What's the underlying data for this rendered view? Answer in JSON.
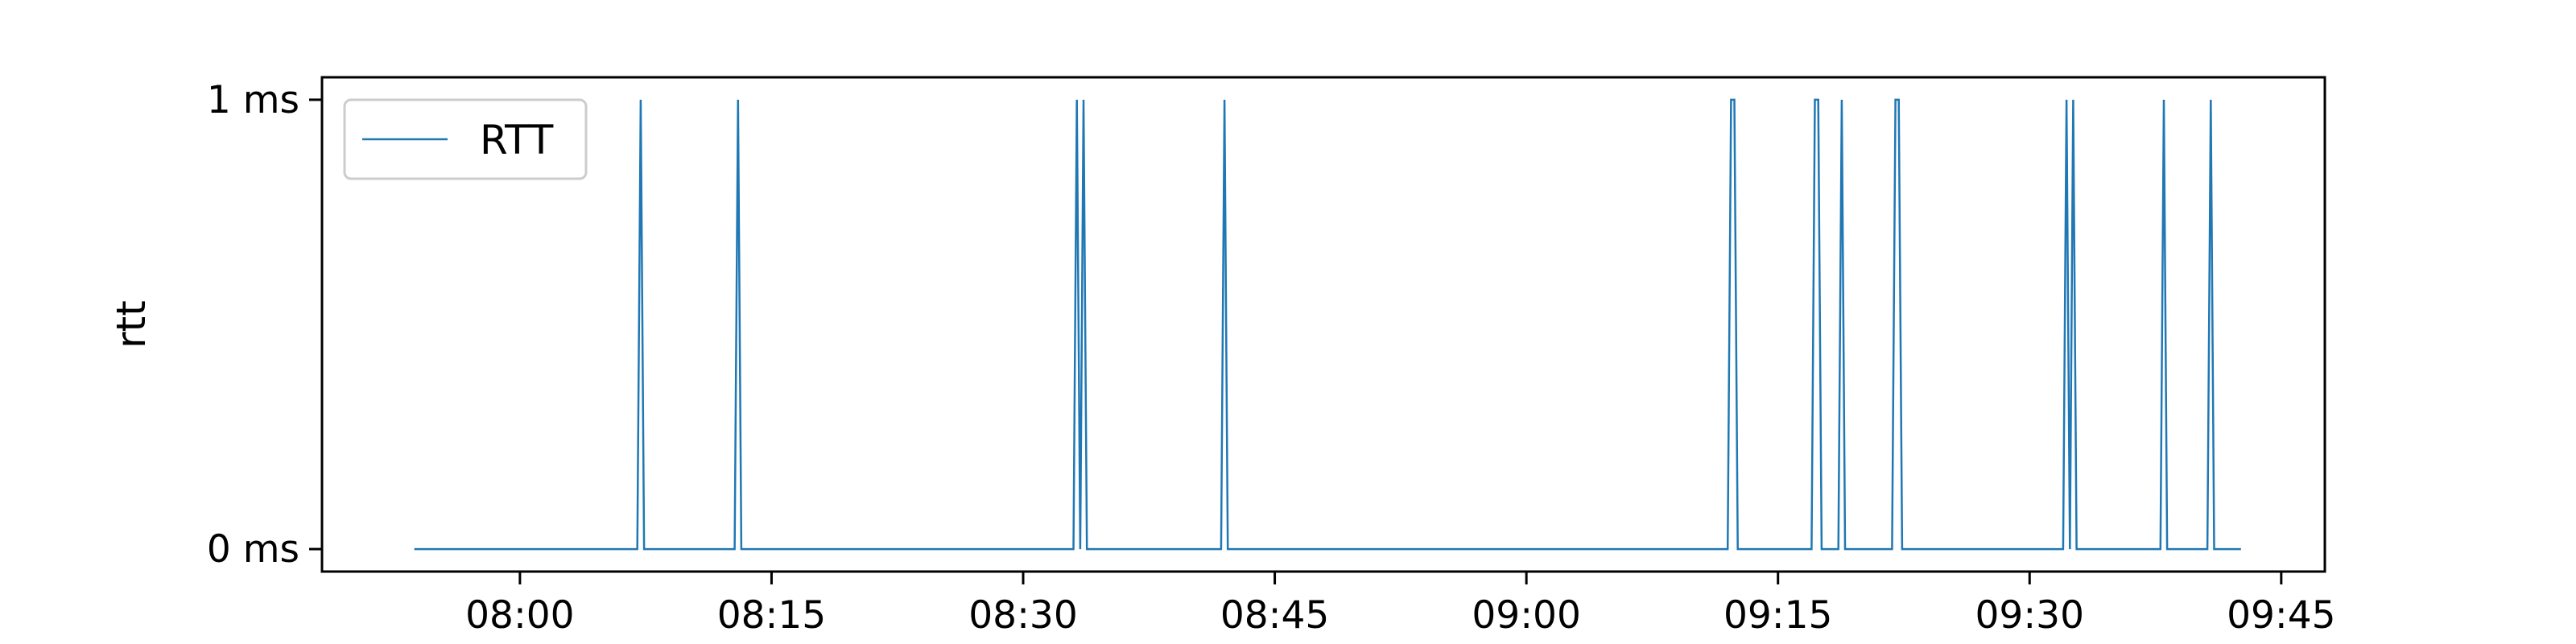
{
  "chart_data": {
    "type": "line",
    "title": "",
    "xlabel": "",
    "ylabel": "rtt",
    "x_ticks": [
      "08:00",
      "08:15",
      "08:30",
      "08:45",
      "09:00",
      "09:15",
      "09:30",
      "09:45"
    ],
    "x_tick_minutes": [
      0,
      15,
      30,
      45,
      60,
      75,
      90,
      105
    ],
    "xlim_minutes": [
      -11.8,
      107.6
    ],
    "y_ticks": [
      {
        "value": 0,
        "label": "0 ms"
      },
      {
        "value": 1,
        "label": "1 ms"
      }
    ],
    "ylim": [
      -0.05,
      1.05
    ],
    "grid": false,
    "legend": {
      "placement": "top-left",
      "entries": [
        "RTT"
      ]
    },
    "series": [
      {
        "name": "RTT",
        "color": "#1f77b4",
        "x_minutes": [
          -6.3,
          7.0,
          7.2,
          7.4,
          12.8,
          13.0,
          13.2,
          33.0,
          33.2,
          33.4,
          33.6,
          33.8,
          41.8,
          42.0,
          42.2,
          72.0,
          72.2,
          72.4,
          72.6,
          77.0,
          77.2,
          77.4,
          77.6,
          78.6,
          78.8,
          79.0,
          81.8,
          82.0,
          82.2,
          82.4,
          92.0,
          92.2,
          92.4,
          92.6,
          92.8,
          97.8,
          98.0,
          98.2,
          100.6,
          100.8,
          101.0,
          102.6
        ],
        "y_ms": [
          0,
          0,
          1,
          0,
          0,
          1,
          0,
          0,
          1,
          0,
          1,
          0,
          0,
          1,
          0,
          0,
          1,
          1,
          0,
          0,
          1,
          1,
          0,
          0,
          1,
          0,
          0,
          1,
          1,
          0,
          0,
          1,
          0,
          1,
          0,
          0,
          1,
          0,
          0,
          1,
          0,
          0
        ]
      }
    ]
  }
}
